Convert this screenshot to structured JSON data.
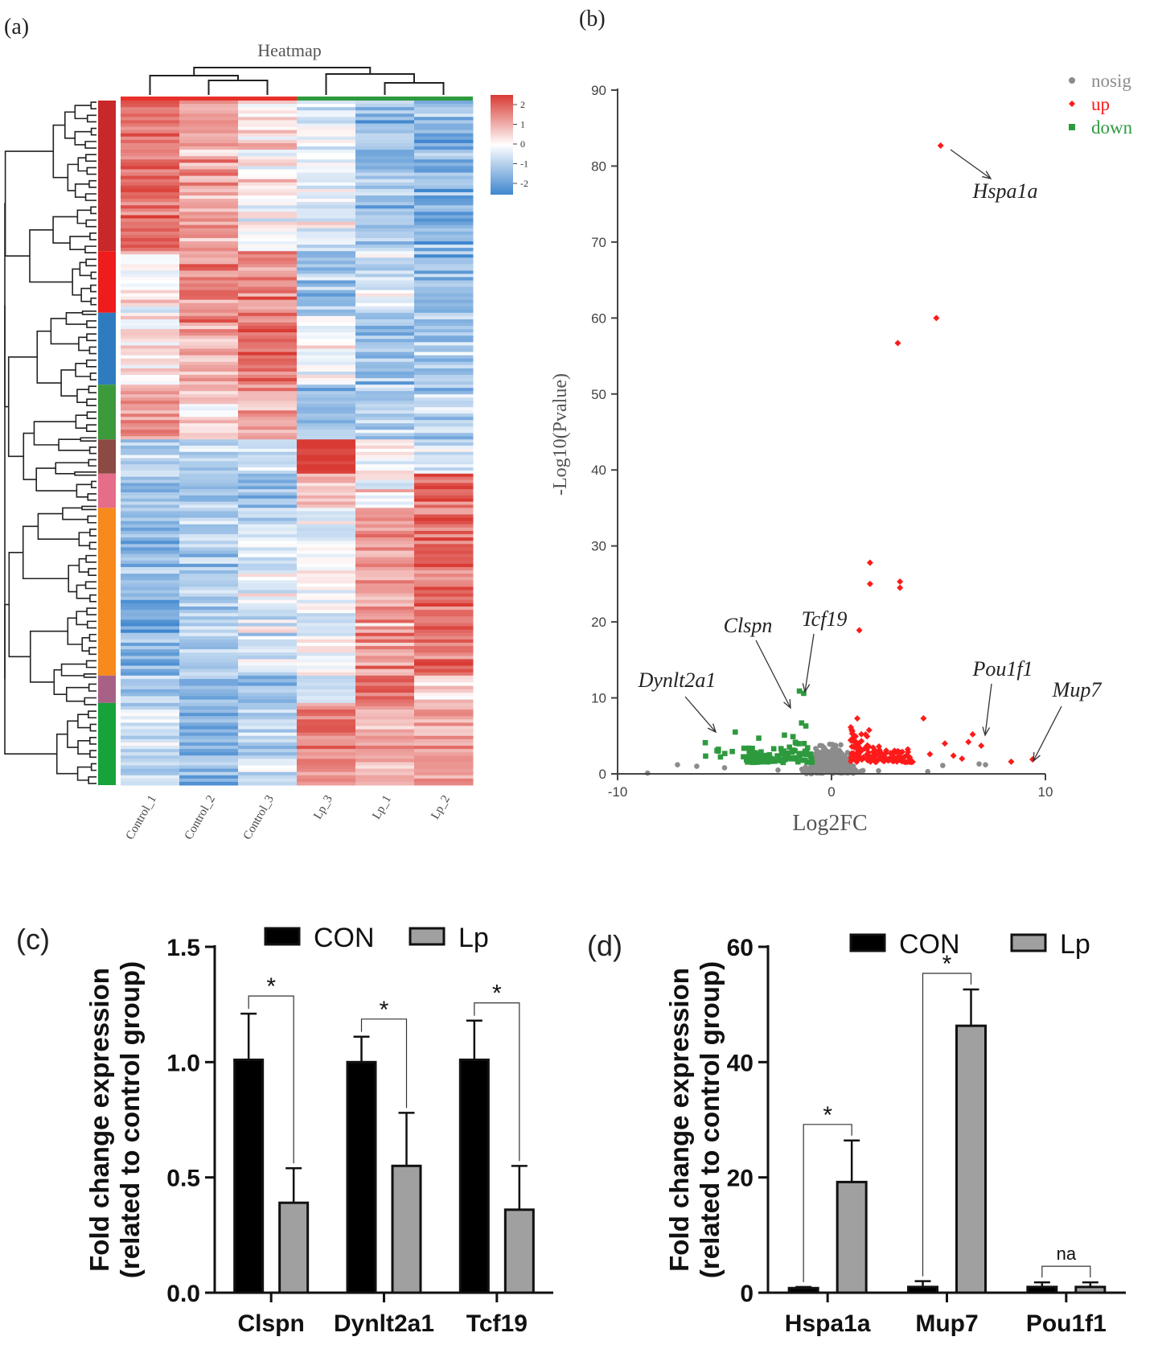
{
  "panels": {
    "a_label": "(a)",
    "b_label": "(b)",
    "c_label": "(c)",
    "d_label": "(d)"
  },
  "colors": {
    "heat_high": "#d93a33",
    "heat_mid": "#ffffff",
    "heat_low": "#3f86cf",
    "nosig": "#8c8c8c",
    "up": "#ff1a1a",
    "down": "#2e9a3e",
    "con_bar": "#000000",
    "lp_bar": "#a0a0a0"
  },
  "chart_data": [
    {
      "type": "heatmap",
      "title": "Heatmap",
      "columns": [
        "Control_1",
        "Control_2",
        "Control_3",
        "Lp_3",
        "Lp_1",
        "Lp_2"
      ],
      "column_groups": [
        {
          "columns": [
            "Control_1",
            "Control_2",
            "Control_3"
          ],
          "color": "#e8302a"
        },
        {
          "columns": [
            "Lp_3",
            "Lp_1",
            "Lp_2"
          ],
          "color": "#2e9a3e"
        }
      ],
      "colorbar": {
        "ticks": [
          "2",
          "1",
          "0",
          "-1",
          "-2"
        ],
        "range": [
          -2,
          2
        ]
      },
      "row_clusters": [
        {
          "color": "#c7282a",
          "rows": 0.22,
          "pattern": [
            1.4,
            0.9,
            0.2,
            -0.3,
            -1.0,
            -1.2
          ]
        },
        {
          "color": "#ee1c1c",
          "rows": 0.09,
          "pattern": [
            0.3,
            1.1,
            1.2,
            -1.1,
            -0.4,
            -1.2
          ]
        },
        {
          "color": "#2f7bbf",
          "rows": 0.105,
          "pattern": [
            0.3,
            0.9,
            1.5,
            -0.2,
            -1.1,
            -0.9
          ]
        },
        {
          "color": "#3c9a3c",
          "rows": 0.08,
          "pattern": [
            1.0,
            0.4,
            0.8,
            -1.0,
            -1.0,
            -0.9
          ]
        },
        {
          "color": "#8b4a44",
          "rows": 0.05,
          "pattern": [
            -0.7,
            -0.8,
            -0.6,
            2.0,
            -0.2,
            -0.4
          ]
        },
        {
          "color": "#e56d8a",
          "rows": 0.05,
          "pattern": [
            -0.9,
            -1.0,
            -1.1,
            0.4,
            0.1,
            1.6
          ]
        },
        {
          "color": "#f7891d",
          "rows": 0.245,
          "pattern": [
            -1.3,
            -0.8,
            -0.3,
            -0.1,
            1.0,
            1.5
          ]
        },
        {
          "color": "#a76187",
          "rows": 0.04,
          "pattern": [
            -0.7,
            -1.0,
            -0.9,
            -0.6,
            1.5,
            0.4
          ]
        },
        {
          "color": "#17a23a",
          "rows": 0.12,
          "pattern": [
            -0.5,
            -1.3,
            -0.6,
            1.2,
            0.8,
            0.9
          ]
        }
      ]
    },
    {
      "type": "scatter",
      "xlabel": "Log2FC",
      "ylabel": "-Log10(Pvalue)",
      "xlim": [
        -10,
        10
      ],
      "ylim": [
        0,
        90
      ],
      "xticks": [
        -10,
        0,
        10
      ],
      "yticks": [
        0,
        10,
        20,
        30,
        40,
        50,
        60,
        70,
        80,
        90
      ],
      "legend": {
        "placement": "top-right",
        "entries": [
          "nosig",
          "up",
          "down"
        ]
      },
      "series": [
        {
          "name": "nosig",
          "count": 700
        },
        {
          "name": "up",
          "points": [
            [
              5.1,
              82.7
            ],
            [
              4.9,
              60.0
            ],
            [
              3.1,
              56.7
            ],
            [
              1.8,
              27.8
            ],
            [
              1.8,
              25.0
            ],
            [
              3.2,
              25.3
            ],
            [
              3.2,
              24.5
            ],
            [
              1.3,
              18.9
            ],
            [
              4.3,
              7.3
            ],
            [
              6.6,
              5.2
            ],
            [
              6.4,
              4.2
            ],
            [
              7.0,
              3.7
            ],
            [
              5.3,
              4.0
            ],
            [
              8.4,
              1.6
            ],
            [
              9.4,
              1.9
            ],
            [
              5.7,
              2.4
            ],
            [
              6.1,
              2.0
            ],
            [
              4.6,
              2.6
            ]
          ],
          "cluster": {
            "x": [
              0.9,
              3.8
            ],
            "count": 140
          }
        },
        {
          "name": "down",
          "points": [
            [
              -1.5,
              10.9
            ],
            [
              -1.3,
              10.6
            ],
            [
              -5.9,
              4.1
            ],
            [
              -4.5,
              5.5
            ],
            [
              -5.3,
              3.0
            ],
            [
              -3.4,
              4.7
            ],
            [
              -2.2,
              5.1
            ],
            [
              -1.8,
              4.9
            ],
            [
              -2.7,
              3.3
            ],
            [
              -1.4,
              6.7
            ],
            [
              -1.2,
              6.3
            ]
          ],
          "cluster": {
            "x": [
              -4.0,
              -0.9
            ],
            "count": 110
          }
        }
      ],
      "annotations": [
        "Hspa1a",
        "Clspn",
        "Tcf19",
        "Dynlt2a1",
        "Pou1f1",
        "Mup7"
      ]
    },
    {
      "type": "bar",
      "categories": [
        "Clspn",
        "Dynlt2a1",
        "Tcf19"
      ],
      "ylabel": "Fold change expression\n(related to control group)",
      "ylim": [
        0,
        1.5
      ],
      "yticks": [
        "0.0",
        "0.5",
        "1.0",
        "1.5"
      ],
      "series": [
        {
          "name": "CON",
          "values": [
            1.01,
            1.0,
            1.01
          ],
          "errors": [
            0.2,
            0.11,
            0.17
          ]
        },
        {
          "name": "Lp",
          "values": [
            0.39,
            0.55,
            0.36
          ],
          "errors": [
            0.15,
            0.23,
            0.19
          ]
        }
      ],
      "significance": [
        "*",
        "*",
        "*"
      ]
    },
    {
      "type": "bar",
      "categories": [
        "Hspa1a",
        "Mup7",
        "Pou1f1"
      ],
      "ylabel": "Fold change expression\n(related to control group)",
      "ylim": [
        0,
        60
      ],
      "yticks": [
        "0",
        "20",
        "40",
        "60"
      ],
      "series": [
        {
          "name": "CON",
          "values": [
            0.8,
            1.0,
            1.0
          ],
          "errors": [
            0.2,
            1.0,
            0.8
          ]
        },
        {
          "name": "Lp",
          "values": [
            19.2,
            46.3,
            1.0
          ],
          "errors": [
            7.2,
            6.3,
            0.8
          ]
        }
      ],
      "significance": [
        "*",
        "*",
        "na"
      ]
    }
  ]
}
